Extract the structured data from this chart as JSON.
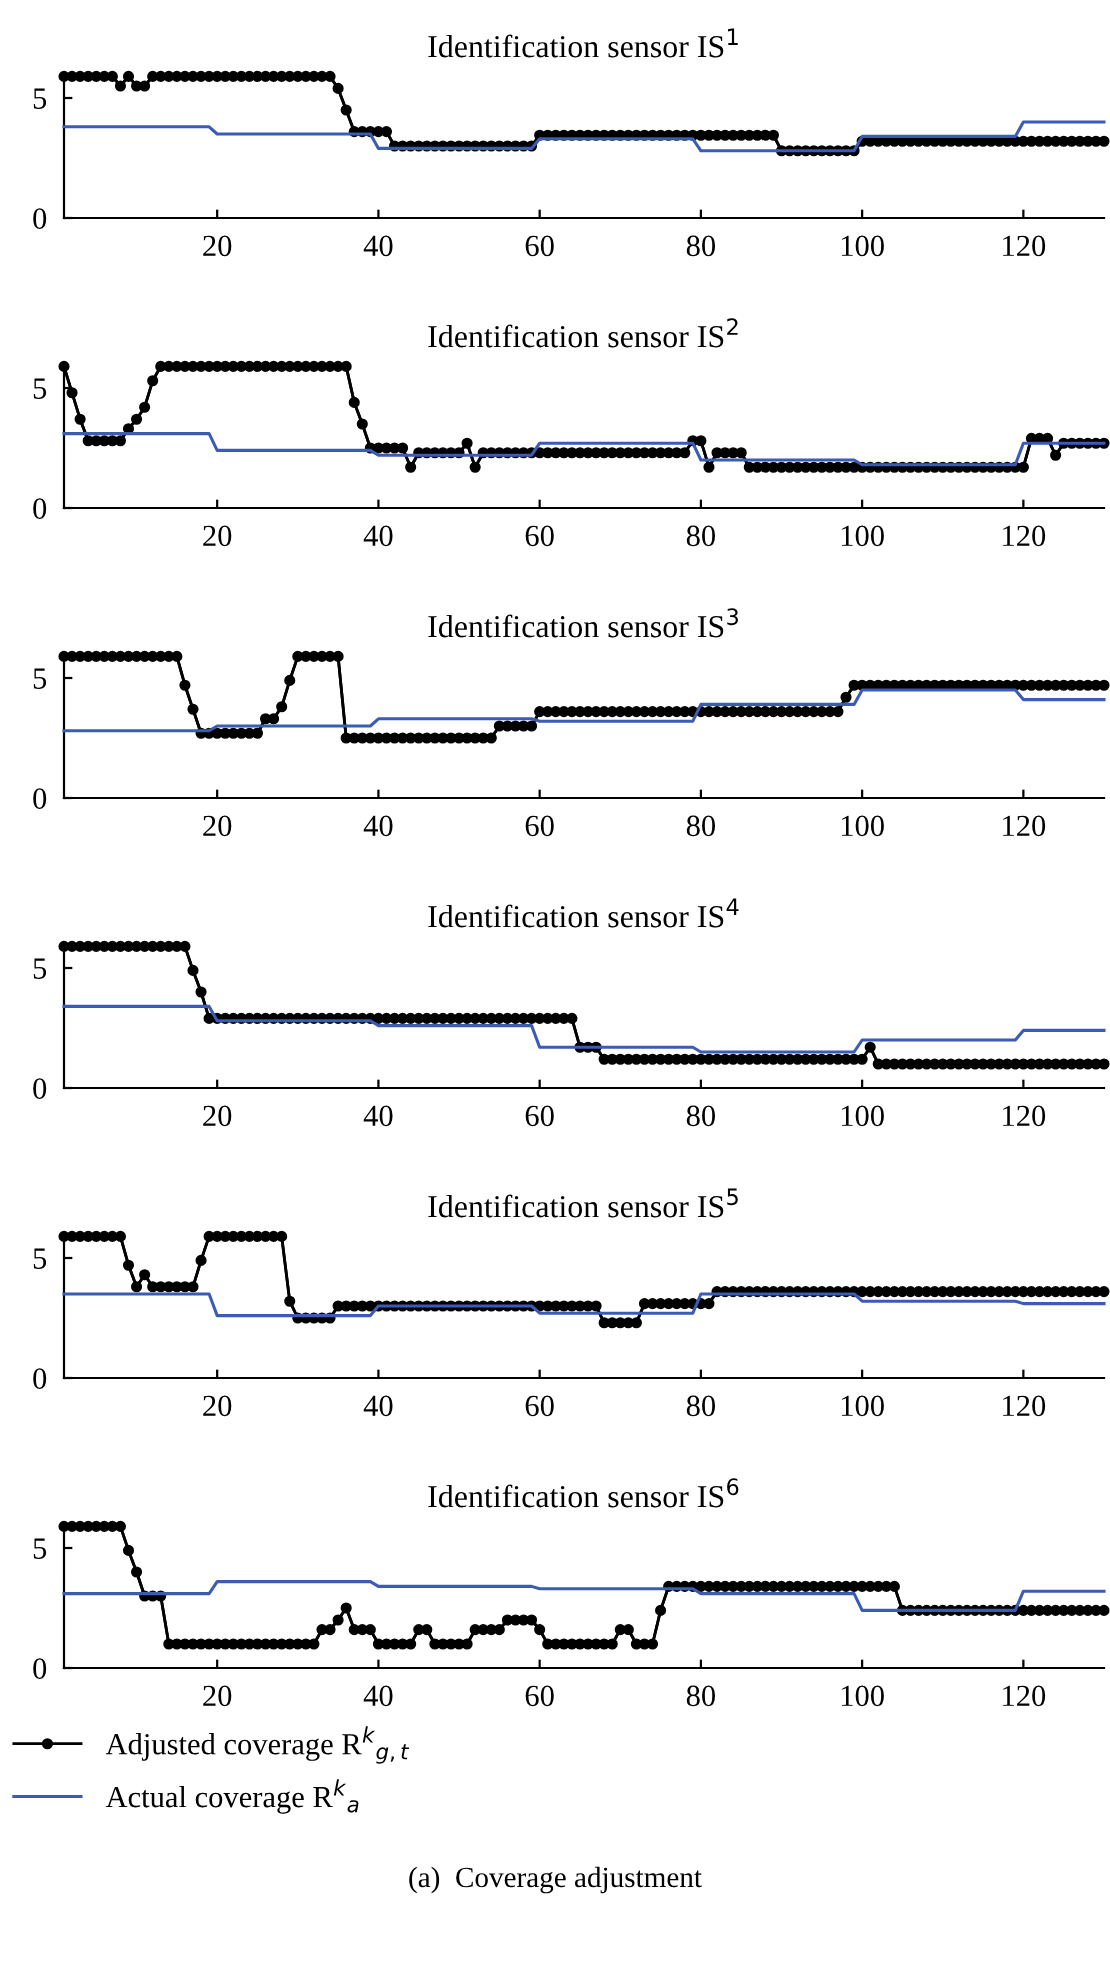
{
  "chart_data": [
    {
      "type": "line",
      "title": "Identification sensor IS$^{1}$",
      "xlim": [
        1,
        130
      ],
      "xticks": [
        20,
        40,
        60,
        80,
        100,
        120
      ],
      "ylim": [
        0,
        6
      ],
      "yticks": [
        0,
        5
      ],
      "grid": false,
      "legend": false,
      "line_style": "solid",
      "x": [
        1,
        2,
        3,
        4,
        5,
        6,
        7,
        8,
        9,
        10,
        11,
        12,
        13,
        14,
        15,
        16,
        17,
        18,
        19,
        20,
        21,
        22,
        23,
        24,
        25,
        26,
        27,
        28,
        29,
        30,
        31,
        32,
        33,
        34,
        35,
        36,
        37,
        38,
        39,
        40,
        41,
        42,
        43,
        44,
        45,
        46,
        47,
        48,
        49,
        50,
        51,
        52,
        53,
        54,
        55,
        56,
        57,
        58,
        59,
        60,
        61,
        62,
        63,
        64,
        65,
        66,
        67,
        68,
        69,
        70,
        71,
        72,
        73,
        74,
        75,
        76,
        77,
        78,
        79,
        80,
        81,
        82,
        83,
        84,
        85,
        86,
        87,
        88,
        89,
        90,
        91,
        92,
        93,
        94,
        95,
        96,
        97,
        98,
        99,
        100,
        101,
        102,
        103,
        104,
        105,
        106,
        107,
        108,
        109,
        110,
        111,
        112,
        113,
        114,
        115,
        116,
        117,
        118,
        119,
        120,
        121,
        122,
        123,
        124,
        125,
        126,
        127,
        128,
        129,
        130
      ],
      "series": [
        {
          "color": "#000000",
          "marker": "circle",
          "values": [
            5.9,
            5.9,
            5.9,
            5.9,
            5.9,
            5.9,
            5.9,
            5.5,
            5.9,
            5.5,
            5.5,
            5.9,
            5.9,
            5.9,
            5.9,
            5.9,
            5.9,
            5.9,
            5.9,
            5.9,
            5.9,
            5.9,
            5.9,
            5.9,
            5.9,
            5.9,
            5.9,
            5.9,
            5.9,
            5.9,
            5.9,
            5.9,
            5.9,
            5.9,
            5.4,
            4.5,
            3.6,
            3.6,
            3.6,
            3.6,
            3.6,
            3.0,
            3.0,
            3.0,
            3.0,
            3.0,
            3.0,
            3.0,
            3.0,
            3.0,
            3.0,
            3.0,
            3.0,
            3.0,
            3.0,
            3.0,
            3.0,
            3.0,
            3.0,
            3.45,
            3.45,
            3.45,
            3.45,
            3.45,
            3.45,
            3.45,
            3.45,
            3.45,
            3.45,
            3.45,
            3.45,
            3.45,
            3.45,
            3.45,
            3.45,
            3.45,
            3.45,
            3.45,
            3.45,
            3.45,
            3.45,
            3.45,
            3.45,
            3.45,
            3.45,
            3.45,
            3.45,
            3.45,
            3.45,
            2.8,
            2.8,
            2.8,
            2.8,
            2.8,
            2.8,
            2.8,
            2.8,
            2.8,
            2.8,
            3.2,
            3.2,
            3.2,
            3.2,
            3.2,
            3.2,
            3.2,
            3.2,
            3.2,
            3.2,
            3.2,
            3.2,
            3.2,
            3.2,
            3.2,
            3.2,
            3.2,
            3.2,
            3.2,
            3.2,
            3.2,
            3.2,
            3.2,
            3.2,
            3.2,
            3.2,
            3.2,
            3.2,
            3.2,
            3.2,
            3.2
          ]
        },
        {
          "color": "#3b5bb5",
          "marker": "none",
          "x": [
            1,
            19,
            20,
            39,
            40,
            59,
            60,
            79,
            80,
            99,
            100,
            119,
            120,
            130
          ],
          "values": [
            3.8,
            3.8,
            3.5,
            3.5,
            2.9,
            2.9,
            3.3,
            3.3,
            2.8,
            2.8,
            3.4,
            3.4,
            4.0,
            4.0
          ]
        }
      ]
    },
    {
      "type": "line",
      "title": "Identification sensor IS$^{2}$",
      "xlim": [
        1,
        130
      ],
      "xticks": [
        20,
        40,
        60,
        80,
        100,
        120
      ],
      "ylim": [
        0,
        6
      ],
      "yticks": [
        0,
        5
      ],
      "grid": false,
      "legend": false,
      "line_style": "solid",
      "x": [
        1,
        2,
        3,
        4,
        5,
        6,
        7,
        8,
        9,
        10,
        11,
        12,
        13,
        14,
        15,
        16,
        17,
        18,
        19,
        20,
        21,
        22,
        23,
        24,
        25,
        26,
        27,
        28,
        29,
        30,
        31,
        32,
        33,
        34,
        35,
        36,
        37,
        38,
        39,
        40,
        41,
        42,
        43,
        44,
        45,
        46,
        47,
        48,
        49,
        50,
        51,
        52,
        53,
        54,
        55,
        56,
        57,
        58,
        59,
        60,
        61,
        62,
        63,
        64,
        65,
        66,
        67,
        68,
        69,
        70,
        71,
        72,
        73,
        74,
        75,
        76,
        77,
        78,
        79,
        80,
        81,
        82,
        83,
        84,
        85,
        86,
        87,
        88,
        89,
        90,
        91,
        92,
        93,
        94,
        95,
        96,
        97,
        98,
        99,
        100,
        101,
        102,
        103,
        104,
        105,
        106,
        107,
        108,
        109,
        110,
        111,
        112,
        113,
        114,
        115,
        116,
        117,
        118,
        119,
        120,
        121,
        122,
        123,
        124,
        125,
        126,
        127,
        128,
        129,
        130
      ],
      "series": [
        {
          "color": "#000000",
          "marker": "circle",
          "values": [
            5.9,
            4.8,
            3.7,
            2.8,
            2.8,
            2.8,
            2.8,
            2.8,
            3.3,
            3.7,
            4.2,
            5.3,
            5.9,
            5.9,
            5.9,
            5.9,
            5.9,
            5.9,
            5.9,
            5.9,
            5.9,
            5.9,
            5.9,
            5.9,
            5.9,
            5.9,
            5.9,
            5.9,
            5.9,
            5.9,
            5.9,
            5.9,
            5.9,
            5.9,
            5.9,
            5.9,
            4.4,
            3.5,
            2.5,
            2.5,
            2.5,
            2.5,
            2.5,
            1.7,
            2.3,
            2.3,
            2.3,
            2.3,
            2.3,
            2.3,
            2.7,
            1.7,
            2.3,
            2.3,
            2.3,
            2.3,
            2.3,
            2.3,
            2.3,
            2.3,
            2.3,
            2.3,
            2.3,
            2.3,
            2.3,
            2.3,
            2.3,
            2.3,
            2.3,
            2.3,
            2.3,
            2.3,
            2.3,
            2.3,
            2.3,
            2.3,
            2.3,
            2.3,
            2.8,
            2.8,
            1.7,
            2.3,
            2.3,
            2.3,
            2.3,
            1.7,
            1.7,
            1.7,
            1.7,
            1.7,
            1.7,
            1.7,
            1.7,
            1.7,
            1.7,
            1.7,
            1.7,
            1.7,
            1.7,
            1.7,
            1.7,
            1.7,
            1.7,
            1.7,
            1.7,
            1.7,
            1.7,
            1.7,
            1.7,
            1.7,
            1.7,
            1.7,
            1.7,
            1.7,
            1.7,
            1.7,
            1.7,
            1.7,
            1.7,
            1.7,
            2.9,
            2.9,
            2.9,
            2.2,
            2.7,
            2.7,
            2.7,
            2.7,
            2.7,
            2.7
          ]
        },
        {
          "color": "#3b5bb5",
          "marker": "none",
          "x": [
            1,
            19,
            20,
            39,
            40,
            59,
            60,
            79,
            80,
            99,
            100,
            119,
            120,
            130
          ],
          "values": [
            3.1,
            3.1,
            2.4,
            2.4,
            2.2,
            2.2,
            2.7,
            2.7,
            2.0,
            2.0,
            1.8,
            1.8,
            2.7,
            2.7
          ]
        }
      ]
    },
    {
      "type": "line",
      "title": "Identification sensor IS$^{3}$",
      "xlim": [
        1,
        130
      ],
      "xticks": [
        20,
        40,
        60,
        80,
        100,
        120
      ],
      "ylim": [
        0,
        6
      ],
      "yticks": [
        0,
        5
      ],
      "grid": false,
      "legend": false,
      "line_style": "solid",
      "x": [
        1,
        2,
        3,
        4,
        5,
        6,
        7,
        8,
        9,
        10,
        11,
        12,
        13,
        14,
        15,
        16,
        17,
        18,
        19,
        20,
        21,
        22,
        23,
        24,
        25,
        26,
        27,
        28,
        29,
        30,
        31,
        32,
        33,
        34,
        35,
        36,
        37,
        38,
        39,
        40,
        41,
        42,
        43,
        44,
        45,
        46,
        47,
        48,
        49,
        50,
        51,
        52,
        53,
        54,
        55,
        56,
        57,
        58,
        59,
        60,
        61,
        62,
        63,
        64,
        65,
        66,
        67,
        68,
        69,
        70,
        71,
        72,
        73,
        74,
        75,
        76,
        77,
        78,
        79,
        80,
        81,
        82,
        83,
        84,
        85,
        86,
        87,
        88,
        89,
        90,
        91,
        92,
        93,
        94,
        95,
        96,
        97,
        98,
        99,
        100,
        101,
        102,
        103,
        104,
        105,
        106,
        107,
        108,
        109,
        110,
        111,
        112,
        113,
        114,
        115,
        116,
        117,
        118,
        119,
        120,
        121,
        122,
        123,
        124,
        125,
        126,
        127,
        128,
        129,
        130
      ],
      "series": [
        {
          "color": "#000000",
          "marker": "circle",
          "values": [
            5.9,
            5.9,
            5.9,
            5.9,
            5.9,
            5.9,
            5.9,
            5.9,
            5.9,
            5.9,
            5.9,
            5.9,
            5.9,
            5.9,
            5.9,
            4.7,
            3.7,
            2.7,
            2.7,
            2.7,
            2.7,
            2.7,
            2.7,
            2.7,
            2.7,
            3.3,
            3.3,
            3.8,
            4.9,
            5.9,
            5.9,
            5.9,
            5.9,
            5.9,
            5.9,
            2.5,
            2.5,
            2.5,
            2.5,
            2.5,
            2.5,
            2.5,
            2.5,
            2.5,
            2.5,
            2.5,
            2.5,
            2.5,
            2.5,
            2.5,
            2.5,
            2.5,
            2.5,
            2.5,
            3.0,
            3.0,
            3.0,
            3.0,
            3.0,
            3.6,
            3.6,
            3.6,
            3.6,
            3.6,
            3.6,
            3.6,
            3.6,
            3.6,
            3.6,
            3.6,
            3.6,
            3.6,
            3.6,
            3.6,
            3.6,
            3.6,
            3.6,
            3.6,
            3.6,
            3.6,
            3.6,
            3.6,
            3.6,
            3.6,
            3.6,
            3.6,
            3.6,
            3.6,
            3.6,
            3.6,
            3.6,
            3.6,
            3.6,
            3.6,
            3.6,
            3.6,
            3.6,
            4.2,
            4.7,
            4.7,
            4.7,
            4.7,
            4.7,
            4.7,
            4.7,
            4.7,
            4.7,
            4.7,
            4.7,
            4.7,
            4.7,
            4.7,
            4.7,
            4.7,
            4.7,
            4.7,
            4.7,
            4.7,
            4.7,
            4.7,
            4.7,
            4.7,
            4.7,
            4.7,
            4.7,
            4.7,
            4.7,
            4.7,
            4.7,
            4.7
          ]
        },
        {
          "color": "#3b5bb5",
          "marker": "none",
          "x": [
            1,
            19,
            20,
            39,
            40,
            59,
            60,
            79,
            80,
            99,
            100,
            119,
            120,
            130
          ],
          "values": [
            2.8,
            2.8,
            3.0,
            3.0,
            3.3,
            3.3,
            3.2,
            3.2,
            3.9,
            3.9,
            4.5,
            4.5,
            4.1,
            4.1
          ]
        }
      ]
    },
    {
      "type": "line",
      "title": "Identification sensor IS$^{4}$",
      "xlim": [
        1,
        130
      ],
      "xticks": [
        20,
        40,
        60,
        80,
        100,
        120
      ],
      "ylim": [
        0,
        6
      ],
      "yticks": [
        0,
        5
      ],
      "grid": false,
      "legend": false,
      "line_style": "solid",
      "x": [
        1,
        2,
        3,
        4,
        5,
        6,
        7,
        8,
        9,
        10,
        11,
        12,
        13,
        14,
        15,
        16,
        17,
        18,
        19,
        20,
        21,
        22,
        23,
        24,
        25,
        26,
        27,
        28,
        29,
        30,
        31,
        32,
        33,
        34,
        35,
        36,
        37,
        38,
        39,
        40,
        41,
        42,
        43,
        44,
        45,
        46,
        47,
        48,
        49,
        50,
        51,
        52,
        53,
        54,
        55,
        56,
        57,
        58,
        59,
        60,
        61,
        62,
        63,
        64,
        65,
        66,
        67,
        68,
        69,
        70,
        71,
        72,
        73,
        74,
        75,
        76,
        77,
        78,
        79,
        80,
        81,
        82,
        83,
        84,
        85,
        86,
        87,
        88,
        89,
        90,
        91,
        92,
        93,
        94,
        95,
        96,
        97,
        98,
        99,
        100,
        101,
        102,
        103,
        104,
        105,
        106,
        107,
        108,
        109,
        110,
        111,
        112,
        113,
        114,
        115,
        116,
        117,
        118,
        119,
        120,
        121,
        122,
        123,
        124,
        125,
        126,
        127,
        128,
        129,
        130
      ],
      "series": [
        {
          "color": "#000000",
          "marker": "circle",
          "values": [
            5.9,
            5.9,
            5.9,
            5.9,
            5.9,
            5.9,
            5.9,
            5.9,
            5.9,
            5.9,
            5.9,
            5.9,
            5.9,
            5.9,
            5.9,
            5.9,
            4.9,
            4.0,
            2.9,
            2.9,
            2.9,
            2.9,
            2.9,
            2.9,
            2.9,
            2.9,
            2.9,
            2.9,
            2.9,
            2.9,
            2.9,
            2.9,
            2.9,
            2.9,
            2.9,
            2.9,
            2.9,
            2.9,
            2.9,
            2.9,
            2.9,
            2.9,
            2.9,
            2.9,
            2.9,
            2.9,
            2.9,
            2.9,
            2.9,
            2.9,
            2.9,
            2.9,
            2.9,
            2.9,
            2.9,
            2.9,
            2.9,
            2.9,
            2.9,
            2.9,
            2.9,
            2.9,
            2.9,
            2.9,
            1.7,
            1.7,
            1.7,
            1.2,
            1.2,
            1.2,
            1.2,
            1.2,
            1.2,
            1.2,
            1.2,
            1.2,
            1.2,
            1.2,
            1.2,
            1.2,
            1.2,
            1.2,
            1.2,
            1.2,
            1.2,
            1.2,
            1.2,
            1.2,
            1.2,
            1.2,
            1.2,
            1.2,
            1.2,
            1.2,
            1.2,
            1.2,
            1.2,
            1.2,
            1.2,
            1.2,
            1.7,
            1.0,
            1.0,
            1.0,
            1.0,
            1.0,
            1.0,
            1.0,
            1.0,
            1.0,
            1.0,
            1.0,
            1.0,
            1.0,
            1.0,
            1.0,
            1.0,
            1.0,
            1.0,
            1.0,
            1.0,
            1.0,
            1.0,
            1.0,
            1.0,
            1.0,
            1.0,
            1.0,
            1.0,
            1.0
          ]
        },
        {
          "color": "#3b5bb5",
          "marker": "none",
          "x": [
            1,
            19,
            20,
            39,
            40,
            59,
            60,
            79,
            80,
            99,
            100,
            119,
            120,
            130
          ],
          "values": [
            3.4,
            3.4,
            2.8,
            2.8,
            2.6,
            2.6,
            1.7,
            1.7,
            1.5,
            1.5,
            2.0,
            2.0,
            2.4,
            2.4
          ]
        }
      ]
    },
    {
      "type": "line",
      "title": "Identification sensor IS$^{5}$",
      "xlim": [
        1,
        130
      ],
      "xticks": [
        20,
        40,
        60,
        80,
        100,
        120
      ],
      "ylim": [
        0,
        6
      ],
      "yticks": [
        0,
        5
      ],
      "grid": false,
      "legend": false,
      "line_style": "solid",
      "x": [
        1,
        2,
        3,
        4,
        5,
        6,
        7,
        8,
        9,
        10,
        11,
        12,
        13,
        14,
        15,
        16,
        17,
        18,
        19,
        20,
        21,
        22,
        23,
        24,
        25,
        26,
        27,
        28,
        29,
        30,
        31,
        32,
        33,
        34,
        35,
        36,
        37,
        38,
        39,
        40,
        41,
        42,
        43,
        44,
        45,
        46,
        47,
        48,
        49,
        50,
        51,
        52,
        53,
        54,
        55,
        56,
        57,
        58,
        59,
        60,
        61,
        62,
        63,
        64,
        65,
        66,
        67,
        68,
        69,
        70,
        71,
        72,
        73,
        74,
        75,
        76,
        77,
        78,
        79,
        80,
        81,
        82,
        83,
        84,
        85,
        86,
        87,
        88,
        89,
        90,
        91,
        92,
        93,
        94,
        95,
        96,
        97,
        98,
        99,
        100,
        101,
        102,
        103,
        104,
        105,
        106,
        107,
        108,
        109,
        110,
        111,
        112,
        113,
        114,
        115,
        116,
        117,
        118,
        119,
        120,
        121,
        122,
        123,
        124,
        125,
        126,
        127,
        128,
        129,
        130
      ],
      "series": [
        {
          "color": "#000000",
          "marker": "circle",
          "values": [
            5.9,
            5.9,
            5.9,
            5.9,
            5.9,
            5.9,
            5.9,
            5.9,
            4.7,
            3.8,
            4.3,
            3.8,
            3.8,
            3.8,
            3.8,
            3.8,
            3.8,
            4.9,
            5.9,
            5.9,
            5.9,
            5.9,
            5.9,
            5.9,
            5.9,
            5.9,
            5.9,
            5.9,
            3.2,
            2.5,
            2.5,
            2.5,
            2.5,
            2.5,
            3.0,
            3.0,
            3.0,
            3.0,
            3.0,
            3.0,
            3.0,
            3.0,
            3.0,
            3.0,
            3.0,
            3.0,
            3.0,
            3.0,
            3.0,
            3.0,
            3.0,
            3.0,
            3.0,
            3.0,
            3.0,
            3.0,
            3.0,
            3.0,
            3.0,
            3.0,
            3.0,
            3.0,
            3.0,
            3.0,
            3.0,
            3.0,
            3.0,
            2.3,
            2.3,
            2.3,
            2.3,
            2.3,
            3.1,
            3.1,
            3.1,
            3.1,
            3.1,
            3.1,
            3.1,
            3.1,
            3.1,
            3.6,
            3.6,
            3.6,
            3.6,
            3.6,
            3.6,
            3.6,
            3.6,
            3.6,
            3.6,
            3.6,
            3.6,
            3.6,
            3.6,
            3.6,
            3.6,
            3.6,
            3.6,
            3.6,
            3.6,
            3.6,
            3.6,
            3.6,
            3.6,
            3.6,
            3.6,
            3.6,
            3.6,
            3.6,
            3.6,
            3.6,
            3.6,
            3.6,
            3.6,
            3.6,
            3.6,
            3.6,
            3.6,
            3.6,
            3.6,
            3.6,
            3.6,
            3.6,
            3.6,
            3.6,
            3.6,
            3.6,
            3.6,
            3.6
          ]
        },
        {
          "color": "#3b5bb5",
          "marker": "none",
          "x": [
            1,
            19,
            20,
            39,
            40,
            59,
            60,
            79,
            80,
            99,
            100,
            119,
            120,
            130
          ],
          "values": [
            3.5,
            3.5,
            2.6,
            2.6,
            3.0,
            3.0,
            2.7,
            2.7,
            3.5,
            3.5,
            3.2,
            3.2,
            3.1,
            3.1
          ]
        }
      ]
    },
    {
      "type": "line",
      "title": "Identification sensor IS$^{6}$",
      "xlim": [
        1,
        130
      ],
      "xticks": [
        20,
        40,
        60,
        80,
        100,
        120
      ],
      "ylim": [
        0,
        6
      ],
      "yticks": [
        0,
        5
      ],
      "grid": false,
      "legend": "bottom left",
      "line_style": "solid",
      "annotations": [
        "(a)  Coverage adjustment"
      ],
      "x": [
        1,
        2,
        3,
        4,
        5,
        6,
        7,
        8,
        9,
        10,
        11,
        12,
        13,
        14,
        15,
        16,
        17,
        18,
        19,
        20,
        21,
        22,
        23,
        24,
        25,
        26,
        27,
        28,
        29,
        30,
        31,
        32,
        33,
        34,
        35,
        36,
        37,
        38,
        39,
        40,
        41,
        42,
        43,
        44,
        45,
        46,
        47,
        48,
        49,
        50,
        51,
        52,
        53,
        54,
        55,
        56,
        57,
        58,
        59,
        60,
        61,
        62,
        63,
        64,
        65,
        66,
        67,
        68,
        69,
        70,
        71,
        72,
        73,
        74,
        75,
        76,
        77,
        78,
        79,
        80,
        81,
        82,
        83,
        84,
        85,
        86,
        87,
        88,
        89,
        90,
        91,
        92,
        93,
        94,
        95,
        96,
        97,
        98,
        99,
        100,
        101,
        102,
        103,
        104,
        105,
        106,
        107,
        108,
        109,
        110,
        111,
        112,
        113,
        114,
        115,
        116,
        117,
        118,
        119,
        120,
        121,
        122,
        123,
        124,
        125,
        126,
        127,
        128,
        129,
        130
      ],
      "series": [
        {
          "name": "Adjusted coverage R$^{k}$$_{g,t}$",
          "color": "#000000",
          "marker": "circle",
          "values": [
            5.9,
            5.9,
            5.9,
            5.9,
            5.9,
            5.9,
            5.9,
            5.9,
            4.9,
            4.0,
            3.0,
            3.0,
            3.0,
            1.0,
            1.0,
            1.0,
            1.0,
            1.0,
            1.0,
            1.0,
            1.0,
            1.0,
            1.0,
            1.0,
            1.0,
            1.0,
            1.0,
            1.0,
            1.0,
            1.0,
            1.0,
            1.0,
            1.6,
            1.6,
            2.0,
            2.5,
            1.6,
            1.6,
            1.6,
            1.0,
            1.0,
            1.0,
            1.0,
            1.0,
            1.6,
            1.6,
            1.0,
            1.0,
            1.0,
            1.0,
            1.0,
            1.6,
            1.6,
            1.6,
            1.6,
            2.0,
            2.0,
            2.0,
            2.0,
            1.6,
            1.0,
            1.0,
            1.0,
            1.0,
            1.0,
            1.0,
            1.0,
            1.0,
            1.0,
            1.6,
            1.6,
            1.0,
            1.0,
            1.0,
            2.4,
            3.4,
            3.4,
            3.4,
            3.4,
            3.4,
            3.4,
            3.4,
            3.4,
            3.4,
            3.4,
            3.4,
            3.4,
            3.4,
            3.4,
            3.4,
            3.4,
            3.4,
            3.4,
            3.4,
            3.4,
            3.4,
            3.4,
            3.4,
            3.4,
            3.4,
            3.4,
            3.4,
            3.4,
            3.4,
            2.4,
            2.4,
            2.4,
            2.4,
            2.4,
            2.4,
            2.4,
            2.4,
            2.4,
            2.4,
            2.4,
            2.4,
            2.4,
            2.4,
            2.4,
            2.4,
            2.4,
            2.4,
            2.4,
            2.4,
            2.4,
            2.4,
            2.4,
            2.4,
            2.4,
            2.4
          ]
        },
        {
          "name": "Actual coverage R$^{k}$$_{a}$",
          "color": "#3b5bb5",
          "marker": "none",
          "x": [
            1,
            19,
            20,
            39,
            40,
            59,
            60,
            79,
            80,
            99,
            100,
            119,
            120,
            130
          ],
          "values": [
            3.1,
            3.1,
            3.6,
            3.6,
            3.4,
            3.4,
            3.3,
            3.3,
            3.1,
            3.1,
            2.4,
            2.4,
            3.2,
            3.2
          ]
        }
      ]
    }
  ]
}
